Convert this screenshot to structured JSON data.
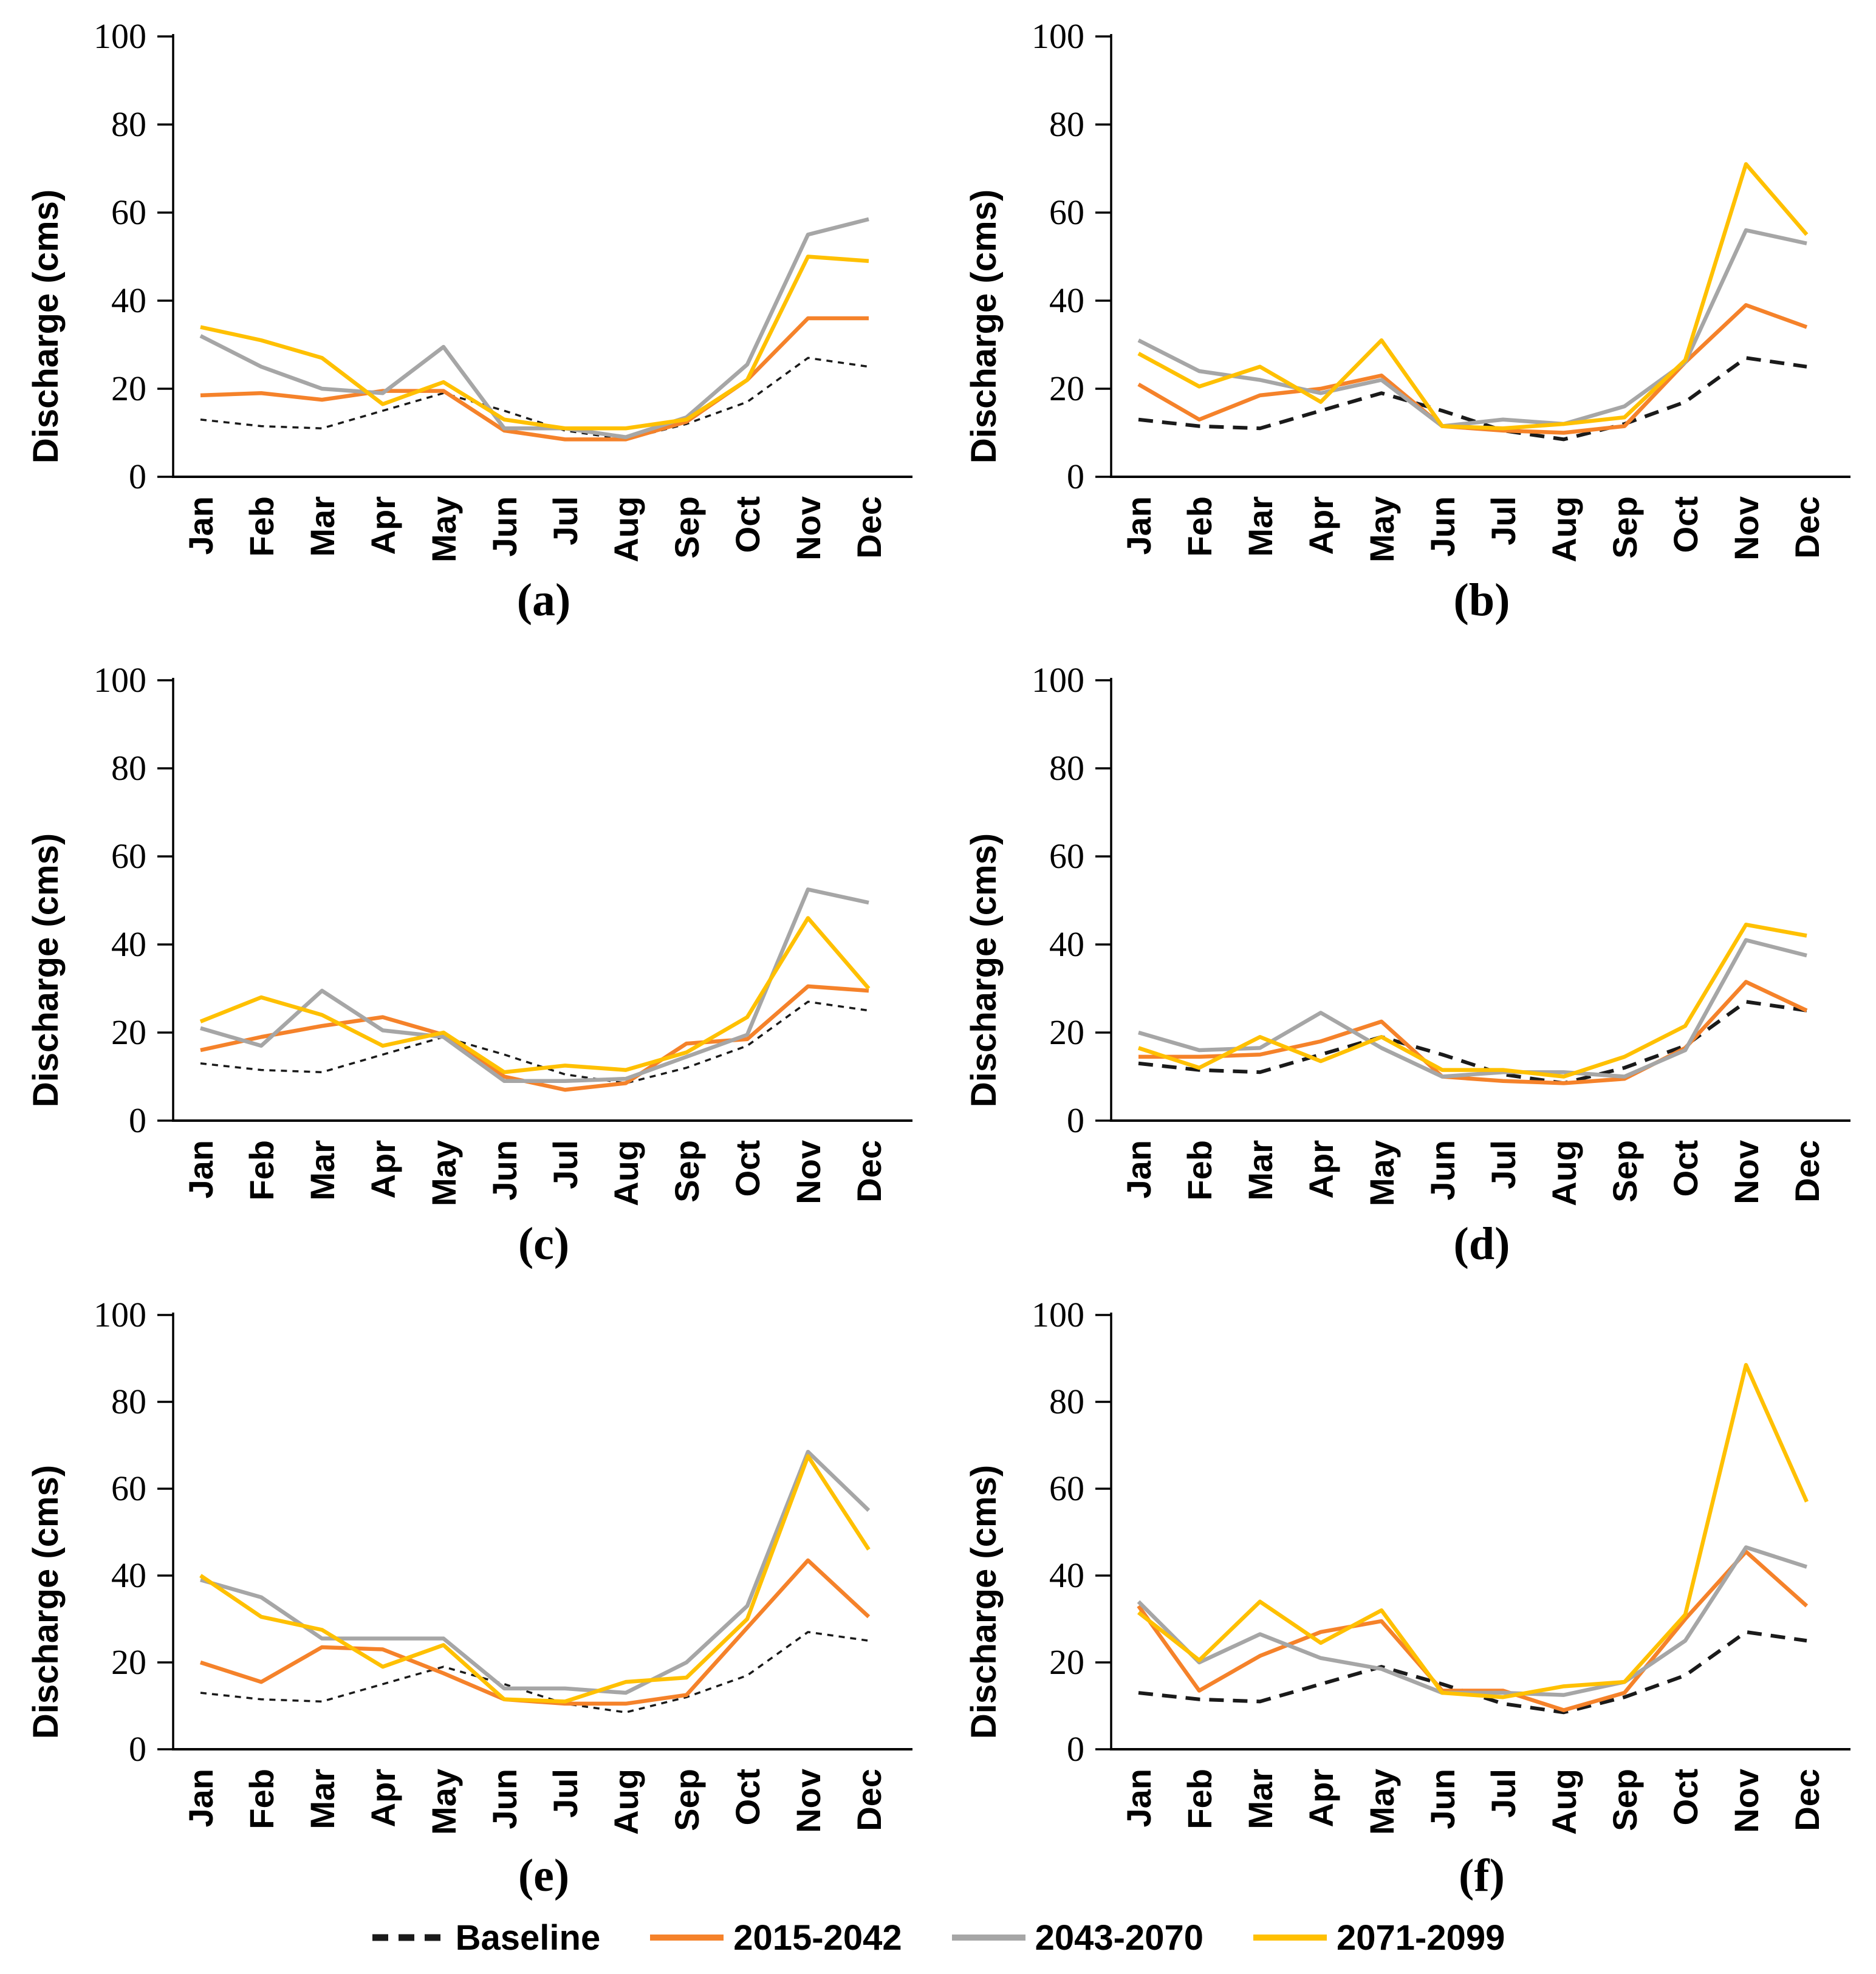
{
  "figure": {
    "ylabel": "Discharge (cms)",
    "yticks": [
      0,
      20,
      40,
      60,
      80,
      100
    ],
    "months": [
      "Jan",
      "Feb",
      "Mar",
      "Apr",
      "May",
      "Jun",
      "Jul",
      "Aug",
      "Sep",
      "Oct",
      "Nov",
      "Dec"
    ]
  },
  "legend": {
    "items": [
      {
        "label": "Baseline",
        "color": "#1a1a1a",
        "style": "dashed"
      },
      {
        "label": "2015-2042",
        "color": "#F5822A",
        "style": "solid"
      },
      {
        "label": "2043-2070",
        "color": "#A6A6A6",
        "style": "solid"
      },
      {
        "label": "2071-2099",
        "color": "#FFC000",
        "style": "solid"
      }
    ]
  },
  "chart_data": {
    "type": "line",
    "categories": [
      "Jan",
      "Feb",
      "Mar",
      "Apr",
      "May",
      "Jun",
      "Jul",
      "Aug",
      "Sep",
      "Oct",
      "Nov",
      "Dec"
    ],
    "ylabel": "Discharge (cms)",
    "ylim": [
      0,
      100
    ],
    "yticks": [
      0,
      20,
      40,
      60,
      80,
      100
    ],
    "grid": false,
    "legend_position": "bottom",
    "panels": [
      {
        "title": "(a)",
        "series": [
          {
            "name": "Baseline",
            "values": [
              13,
              11.5,
              11,
              15,
              19,
              15,
              10.5,
              8.5,
              12,
              17,
              27,
              25
            ]
          },
          {
            "name": "2015-2042",
            "values": [
              18.5,
              19,
              17.5,
              19.5,
              19.5,
              10.5,
              8.5,
              8.5,
              12.5,
              22,
              36,
              36
            ]
          },
          {
            "name": "2043-2070",
            "values": [
              32,
              25,
              20,
              19,
              29.5,
              11,
              11,
              9,
              13.5,
              25.5,
              55,
              58.5
            ]
          },
          {
            "name": "2071-2099",
            "values": [
              34,
              31,
              27,
              16.5,
              21.5,
              13,
              11,
              11,
              13,
              22,
              50,
              49
            ]
          }
        ]
      },
      {
        "title": "(b)",
        "series": [
          {
            "name": "Baseline",
            "values": [
              13,
              11.5,
              11,
              15,
              19,
              15,
              10.5,
              8.5,
              12,
              17,
              27,
              25
            ]
          },
          {
            "name": "2015-2042",
            "values": [
              21,
              13,
              18.5,
              20,
              23,
              11.5,
              10.5,
              10,
              11.5,
              26,
              39,
              34
            ]
          },
          {
            "name": "2043-2070",
            "values": [
              31,
              24,
              22,
              19,
              22,
              11.5,
              13,
              12,
              16,
              26,
              56,
              53
            ]
          },
          {
            "name": "2071-2099",
            "values": [
              28,
              20.5,
              25,
              17,
              31,
              11.5,
              11,
              12,
              13.5,
              26.5,
              71,
              55
            ]
          }
        ]
      },
      {
        "title": "(c)",
        "series": [
          {
            "name": "Baseline",
            "values": [
              13,
              11.5,
              11,
              15,
              19,
              15,
              10.5,
              8.5,
              12,
              17,
              27,
              25
            ]
          },
          {
            "name": "2015-2042",
            "values": [
              16,
              19,
              21.5,
              23.5,
              19.5,
              10,
              7,
              8.5,
              17.5,
              18.5,
              30.5,
              29.5
            ]
          },
          {
            "name": "2043-2070",
            "values": [
              21,
              17,
              29.5,
              20.5,
              19,
              9,
              9,
              9.5,
              14.5,
              19.5,
              52.5,
              49.5
            ]
          },
          {
            "name": "2071-2099",
            "values": [
              22.5,
              28,
              24,
              17,
              20,
              11,
              12.5,
              11.5,
              15.5,
              23.5,
              46,
              30
            ]
          }
        ]
      },
      {
        "title": "(d)",
        "series": [
          {
            "name": "Baseline",
            "values": [
              13,
              11.5,
              11,
              15,
              19,
              15,
              10.5,
              8.5,
              12,
              17,
              27,
              25
            ]
          },
          {
            "name": "2015-2042",
            "values": [
              14.5,
              14.5,
              15,
              18,
              22.5,
              10,
              9,
              8.5,
              9.5,
              16.5,
              31.5,
              25
            ]
          },
          {
            "name": "2043-2070",
            "values": [
              20,
              16,
              16.5,
              24.5,
              16.5,
              10,
              11,
              11,
              10,
              16,
              41,
              37.5
            ]
          },
          {
            "name": "2071-2099",
            "values": [
              16.5,
              12,
              19,
              13.5,
              19,
              11.5,
              11.5,
              10,
              14.5,
              21.5,
              44.5,
              42
            ]
          }
        ]
      },
      {
        "title": "(e)",
        "series": [
          {
            "name": "Baseline",
            "values": [
              13,
              11.5,
              11,
              15,
              19,
              15,
              10.5,
              8.5,
              12,
              17,
              27,
              25
            ]
          },
          {
            "name": "2015-2042",
            "values": [
              20,
              15.5,
              23.5,
              23,
              17.5,
              11.5,
              10.5,
              10.5,
              12.5,
              28,
              43.5,
              30.5
            ]
          },
          {
            "name": "2043-2070",
            "values": [
              39,
              35,
              25.5,
              25.5,
              25.5,
              14,
              14,
              13,
              20,
              33,
              68.5,
              55
            ]
          },
          {
            "name": "2071-2099",
            "values": [
              40,
              30.5,
              27.5,
              19,
              24,
              11.5,
              11,
              15.5,
              16.5,
              30,
              67.5,
              46
            ]
          }
        ]
      },
      {
        "title": "(f)",
        "series": [
          {
            "name": "Baseline",
            "values": [
              13,
              11.5,
              11,
              15,
              19,
              15,
              10.5,
              8.5,
              12,
              17,
              27,
              25
            ]
          },
          {
            "name": "2015-2042",
            "values": [
              33,
              13.5,
              21.5,
              27,
              29.5,
              13.5,
              13.5,
              9,
              13,
              30,
              45.5,
              33
            ]
          },
          {
            "name": "2043-2070",
            "values": [
              34,
              20,
              26.5,
              21,
              18.5,
              13,
              13,
              12.5,
              15.5,
              25,
              46.5,
              42
            ]
          },
          {
            "name": "2071-2099",
            "values": [
              31.5,
              20.5,
              34,
              24.5,
              32,
              13,
              12,
              14.5,
              15.5,
              31,
              88.5,
              57
            ]
          }
        ]
      }
    ]
  }
}
